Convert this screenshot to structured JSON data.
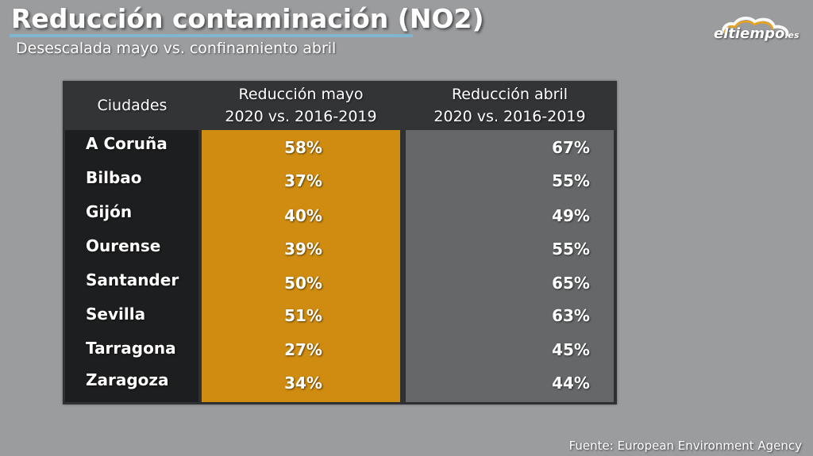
{
  "title": "Reducción contaminación (NO2)",
  "subtitle": "Desescalada mayo vs. confinamiento abril",
  "logo": {
    "name": "eltiempo",
    "tld": ".es"
  },
  "source": "Fuente: European Environment Agency",
  "colors": {
    "background": "#9b9c9e",
    "may_column": "#d08c10",
    "april_column": "#656768",
    "cities_column": "#1d1e1f",
    "title_underline": "#7fb5cf"
  },
  "chart_data": {
    "type": "table",
    "columns": [
      {
        "label": "Ciudades"
      },
      {
        "label_line1": "Reducción mayo",
        "label_line2": "2020 vs. 2016-2019"
      },
      {
        "label_line1": "Reducción abril",
        "label_line2": "2020 vs. 2016-2019"
      }
    ],
    "rows": [
      {
        "city": "A Coruña",
        "may": "58%",
        "april": "67%"
      },
      {
        "city": "Bilbao",
        "may": "37%",
        "april": "55%"
      },
      {
        "city": "Gijón",
        "may": "40%",
        "april": "49%"
      },
      {
        "city": "Ourense",
        "may": "39%",
        "april": "55%"
      },
      {
        "city": "Santander",
        "may": "50%",
        "april": "65%"
      },
      {
        "city": "Sevilla",
        "may": "51%",
        "april": "63%"
      },
      {
        "city": "Tarragona",
        "may": "27%",
        "april": "45%"
      },
      {
        "city": "Zaragoza",
        "may": "34%",
        "april": "44%"
      }
    ]
  }
}
